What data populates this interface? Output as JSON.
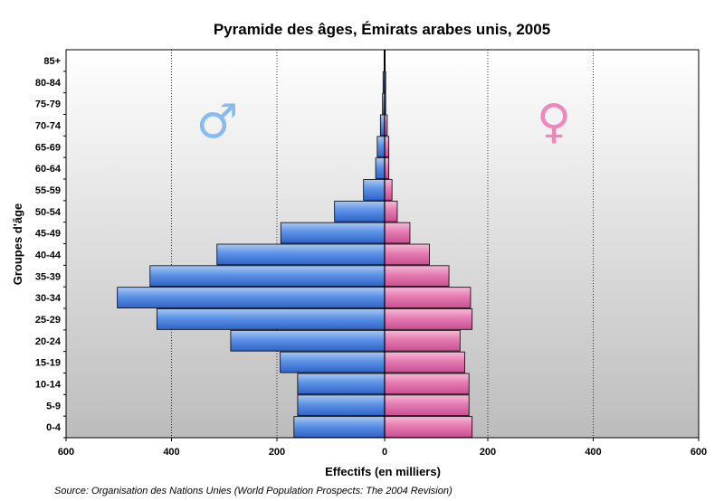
{
  "chart_data": {
    "type": "bar",
    "orientation": "horizontal",
    "layout": "population-pyramid",
    "title": "Pyramide des âges, Émirats arabes unis, 2005",
    "xlabel": "Effectifs (en milliers)",
    "ylabel": "Groupes d'âge",
    "source": "Source: Organisation des Nations Unies (World Population Prospects: The 2004 Revision)",
    "xlim": [
      -600,
      600
    ],
    "x_ticks": [
      -600,
      -400,
      -200,
      0,
      200,
      400,
      600
    ],
    "x_tick_labels": [
      "600",
      "400",
      "200",
      "0",
      "200",
      "400",
      "600"
    ],
    "grid": "vertical",
    "categories": [
      "0-4",
      "5-9",
      "10-14",
      "15-19",
      "20-24",
      "25-29",
      "30-34",
      "35-39",
      "40-44",
      "45-49",
      "50-54",
      "55-59",
      "60-64",
      "65-69",
      "70-74",
      "75-79",
      "80-84",
      "85+"
    ],
    "series": [
      {
        "name": "♂",
        "side": "left",
        "color": "#4a84e0",
        "values": [
          172,
          165,
          165,
          198,
          292,
          432,
          507,
          445,
          318,
          197,
          95,
          40,
          17,
          14,
          8,
          4,
          3,
          1
        ]
      },
      {
        "name": "♀",
        "side": "right",
        "color": "#e070a8",
        "values": [
          166,
          160,
          160,
          152,
          143,
          166,
          163,
          122,
          85,
          48,
          24,
          14,
          8,
          8,
          5,
          2,
          2,
          1
        ]
      }
    ],
    "symbols": [
      {
        "char": "♂",
        "color": "#88bbee"
      },
      {
        "char": "♀",
        "color": "#ee88bb"
      }
    ],
    "plot_background": "#c0c0c0"
  }
}
